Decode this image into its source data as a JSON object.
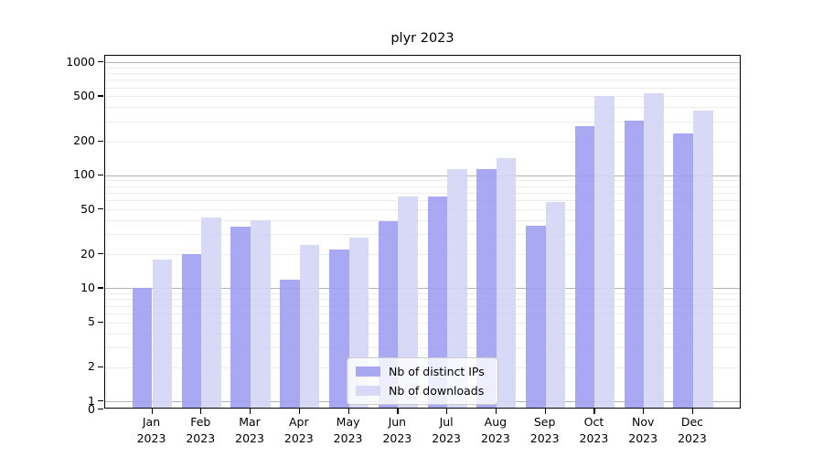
{
  "title": "plyr 2023",
  "chart_data": {
    "type": "bar",
    "title": "plyr 2023",
    "categories": [
      "Jan",
      "Feb",
      "Mar",
      "Apr",
      "May",
      "Jun",
      "Jul",
      "Aug",
      "Sep",
      "Oct",
      "Nov",
      "Dec"
    ],
    "x_tick_second_line": "2023",
    "series": [
      {
        "name": "Nb of distinct IPs",
        "color": "rgba(158,158,242,0.9)",
        "values": [
          10,
          20,
          35,
          12,
          22,
          39,
          65,
          113,
          36,
          270,
          305,
          235
        ]
      },
      {
        "name": "Nb of downloads",
        "color": "rgba(212,212,246,0.9)",
        "values": [
          18,
          42,
          40,
          24,
          28,
          65,
          113,
          142,
          58,
          500,
          535,
          375
        ]
      }
    ],
    "y_axis": {
      "scale": "symlog",
      "ticks": [
        1000,
        500,
        200,
        100,
        50,
        20,
        10,
        5,
        2,
        1,
        0
      ],
      "major_gridlines": [
        1,
        10,
        100,
        1000
      ],
      "minor_gridlines": [
        2,
        3,
        4,
        5,
        6,
        7,
        8,
        9,
        20,
        30,
        40,
        50,
        60,
        70,
        80,
        90,
        200,
        300,
        400,
        500,
        600,
        700,
        800,
        900
      ],
      "ylim": [
        0,
        1000
      ]
    },
    "legend": {
      "position": "lower center",
      "entries": [
        "Nb of distinct IPs",
        "Nb of downloads"
      ]
    },
    "grid": true
  },
  "colors": {
    "bar_distinct_ips": "rgba(158,158,242,0.9)",
    "bar_downloads": "rgba(212,212,246,0.9)",
    "grid_major": "#b3b3b3",
    "grid_minor": "#ececec",
    "axis": "#000000",
    "legend_border": "#cccccc",
    "background": "#ffffff"
  }
}
